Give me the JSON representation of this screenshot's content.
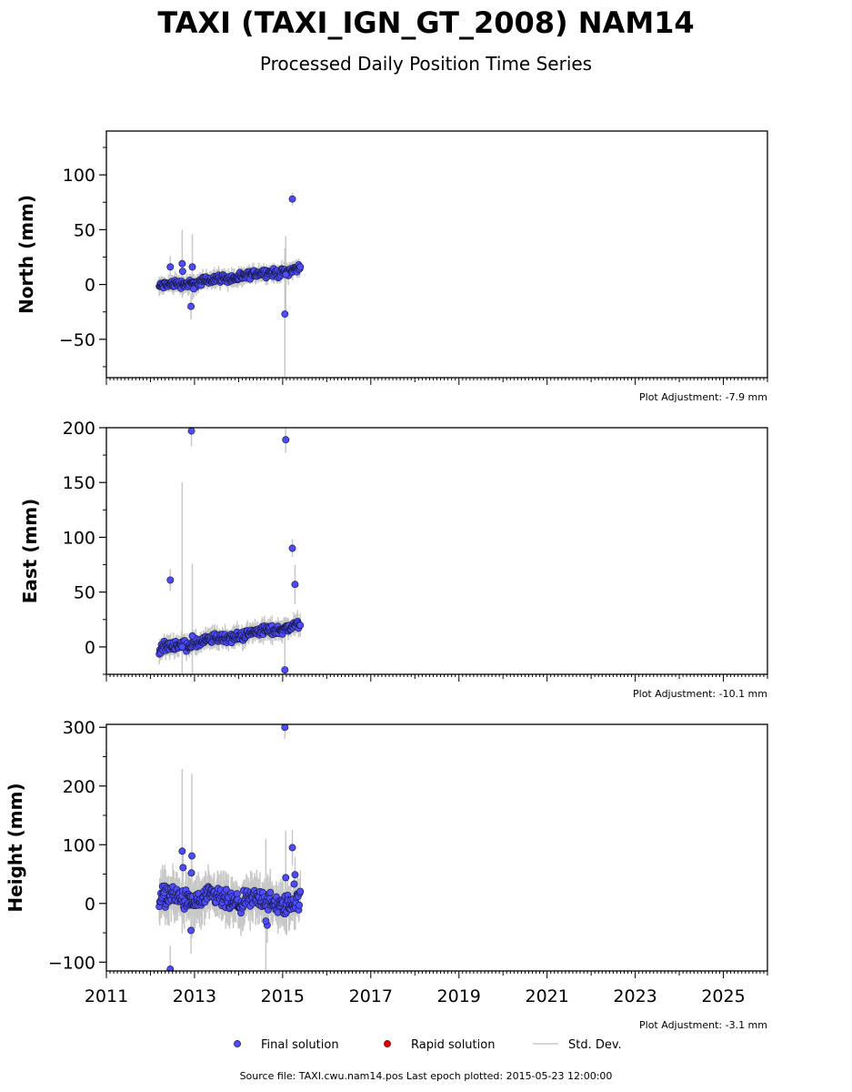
{
  "title": "TAXI (TAXI_IGN_GT_2008) NAM14",
  "subtitle": "Processed Daily Position Time Series",
  "source_text": "Source file: TAXI.cwu.nam14.pos  Last epoch plotted: 2015-05-23 12:00:00",
  "colors": {
    "final": "#4d4dff",
    "rapid": "#e00000",
    "stddev": "#c8c8c8",
    "edge": "#1a1a4a"
  },
  "legend": {
    "final": "Final solution",
    "rapid": "Rapid solution",
    "stddev": "Std. Dev.",
    "placement": "bottom-center"
  },
  "chart_data": [
    {
      "type": "scatter",
      "ylabel": "North (mm)",
      "adjustment": "Plot Adjustment: -7.9 mm",
      "xlim": [
        2011,
        2026
      ],
      "ylim": [
        -85,
        140
      ],
      "yticks": [
        -50,
        0,
        50,
        100
      ],
      "trend": {
        "x0": 2012.2,
        "y0": -2,
        "x1": 2015.4,
        "y1": 14,
        "scatter": 2.5
      },
      "outliers": [
        {
          "x": 2012.45,
          "y": 16,
          "err": 10
        },
        {
          "x": 2012.72,
          "y": 19,
          "err": 31
        },
        {
          "x": 2012.73,
          "y": 12,
          "err": 8
        },
        {
          "x": 2012.92,
          "y": -20,
          "err": 12
        },
        {
          "x": 2012.95,
          "y": 16,
          "err": 30
        },
        {
          "x": 2012.98,
          "y": -4,
          "err": 8
        },
        {
          "x": 2015.05,
          "y": -27,
          "err": 60
        },
        {
          "x": 2015.07,
          "y": 9,
          "err": 35
        },
        {
          "x": 2015.22,
          "y": 78,
          "err": 6
        }
      ]
    },
    {
      "type": "scatter",
      "ylabel": "East (mm)",
      "adjustment": "Plot Adjustment: -10.1 mm",
      "xlim": [
        2011,
        2026
      ],
      "ylim": [
        -25,
        200
      ],
      "yticks": [
        0,
        50,
        100,
        150,
        200
      ],
      "trend": {
        "x0": 2012.2,
        "y0": -2,
        "x1": 2015.4,
        "y1": 20,
        "scatter": 3
      },
      "outliers": [
        {
          "x": 2012.45,
          "y": 61,
          "err": 10
        },
        {
          "x": 2012.72,
          "y": 0,
          "err": 150
        },
        {
          "x": 2012.93,
          "y": 197,
          "err": 14
        },
        {
          "x": 2012.95,
          "y": 10,
          "err": 66
        },
        {
          "x": 2015.05,
          "y": -21,
          "err": 40
        },
        {
          "x": 2015.07,
          "y": 189,
          "err": 12
        },
        {
          "x": 2015.22,
          "y": 90,
          "err": 8
        },
        {
          "x": 2015.28,
          "y": 57,
          "err": 18
        }
      ]
    },
    {
      "type": "scatter",
      "ylabel": "Height (mm)",
      "adjustment": "Plot Adjustment: -3.1 mm",
      "xlabel": "",
      "xlim": [
        2011,
        2026
      ],
      "ylim": [
        -115,
        305
      ],
      "yticks": [
        -100,
        0,
        100,
        200,
        300
      ],
      "xticks": [
        2011,
        2013,
        2015,
        2017,
        2019,
        2021,
        2023,
        2025
      ],
      "trend": {
        "x0": 2012.2,
        "y0": 10,
        "x1": 2015.4,
        "y1": 0,
        "scatter": 12
      },
      "outliers": [
        {
          "x": 2012.45,
          "y": -112,
          "err": 40
        },
        {
          "x": 2012.72,
          "y": 89,
          "err": 140
        },
        {
          "x": 2012.74,
          "y": 61,
          "err": 30
        },
        {
          "x": 2012.92,
          "y": -46,
          "err": 40
        },
        {
          "x": 2012.94,
          "y": 81,
          "err": 140
        },
        {
          "x": 2012.93,
          "y": 52,
          "err": 30
        },
        {
          "x": 2014.65,
          "y": -37,
          "err": 30
        },
        {
          "x": 2014.62,
          "y": -30,
          "err": 140
        },
        {
          "x": 2015.05,
          "y": 300,
          "err": 20
        },
        {
          "x": 2015.07,
          "y": 44,
          "err": 80
        },
        {
          "x": 2015.22,
          "y": 95,
          "err": 30
        },
        {
          "x": 2015.28,
          "y": 49,
          "err": 30
        },
        {
          "x": 2015.26,
          "y": 33,
          "err": 20
        }
      ]
    }
  ]
}
